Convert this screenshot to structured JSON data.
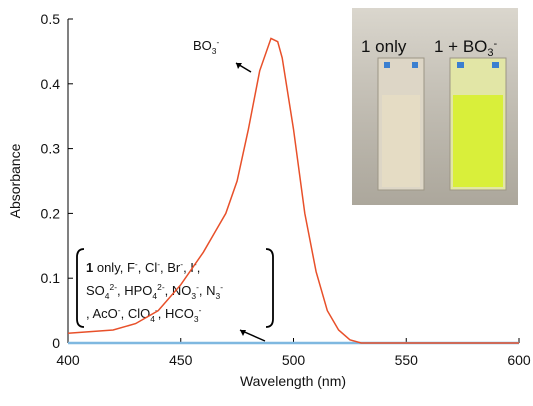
{
  "chart_data": {
    "type": "line",
    "xlabel": "Wavelength (nm)",
    "ylabel": "Absorbance",
    "x": [
      400,
      420,
      430,
      440,
      450,
      460,
      465,
      470,
      475,
      480,
      485,
      490,
      493,
      495,
      500,
      505,
      510,
      515,
      520,
      525,
      530,
      600
    ],
    "series": [
      {
        "color": "#e8502a",
        "values": [
          0.015,
          0.02,
          0.03,
          0.05,
          0.09,
          0.14,
          0.17,
          0.2,
          0.25,
          0.33,
          0.42,
          0.47,
          0.465,
          0.44,
          0.33,
          0.2,
          0.11,
          0.05,
          0.02,
          0.005,
          0,
          0
        ]
      },
      {
        "color": "#7fb8e0",
        "values": [
          0,
          0,
          0,
          0,
          0,
          0,
          0,
          0,
          0,
          0,
          0,
          0,
          0,
          0,
          0,
          0,
          0,
          0,
          0,
          0,
          0,
          0
        ]
      }
    ],
    "xlim": [
      400,
      600
    ],
    "ylim": [
      0,
      0.5
    ],
    "xticks": [
      400,
      450,
      500,
      550,
      600
    ],
    "yticks": [
      0,
      0.1,
      0.2,
      0.3,
      0.4,
      0.5
    ],
    "peak_label": [
      {
        "t": "BO"
      },
      {
        "t": "3",
        "sub": true
      },
      {
        "t": "-",
        "sup": true
      }
    ],
    "bracket_lines": [
      [
        {
          "t": "1",
          "bold": true
        },
        {
          "t": " only, F"
        },
        {
          "t": "-",
          "sup": true
        },
        {
          "t": ", Cl"
        },
        {
          "t": "-",
          "sup": true
        },
        {
          "t": ", Br"
        },
        {
          "t": "-",
          "sup": true
        },
        {
          "t": ", I"
        },
        {
          "t": "-",
          "sup": true
        },
        {
          "t": ","
        }
      ],
      [
        {
          "t": "SO"
        },
        {
          "t": "4",
          "sub": true
        },
        {
          "t": "2-",
          "sup": true
        },
        {
          "t": ", HPO"
        },
        {
          "t": "4",
          "sub": true
        },
        {
          "t": "2-",
          "sup": true
        },
        {
          "t": ", NO"
        },
        {
          "t": "3",
          "sub": true
        },
        {
          "t": "-",
          "sup": true
        },
        {
          "t": ", N"
        },
        {
          "t": "3",
          "sub": true
        },
        {
          "t": "-",
          "sup": true
        }
      ],
      [
        {
          "t": ", AcO"
        },
        {
          "t": "-",
          "sup": true
        },
        {
          "t": ", ClO"
        },
        {
          "t": "4",
          "sub": true
        },
        {
          "t": "-",
          "sup": true
        },
        {
          "t": ", HCO"
        },
        {
          "t": "3",
          "sub": true
        },
        {
          "t": "-",
          "sup": true
        }
      ]
    ],
    "inset_left": [
      {
        "t": "1 only"
      }
    ],
    "inset_right": [
      {
        "t": "1 + BO"
      },
      {
        "t": "3",
        "sub": true
      },
      {
        "t": "-",
        "sup": true
      }
    ]
  }
}
